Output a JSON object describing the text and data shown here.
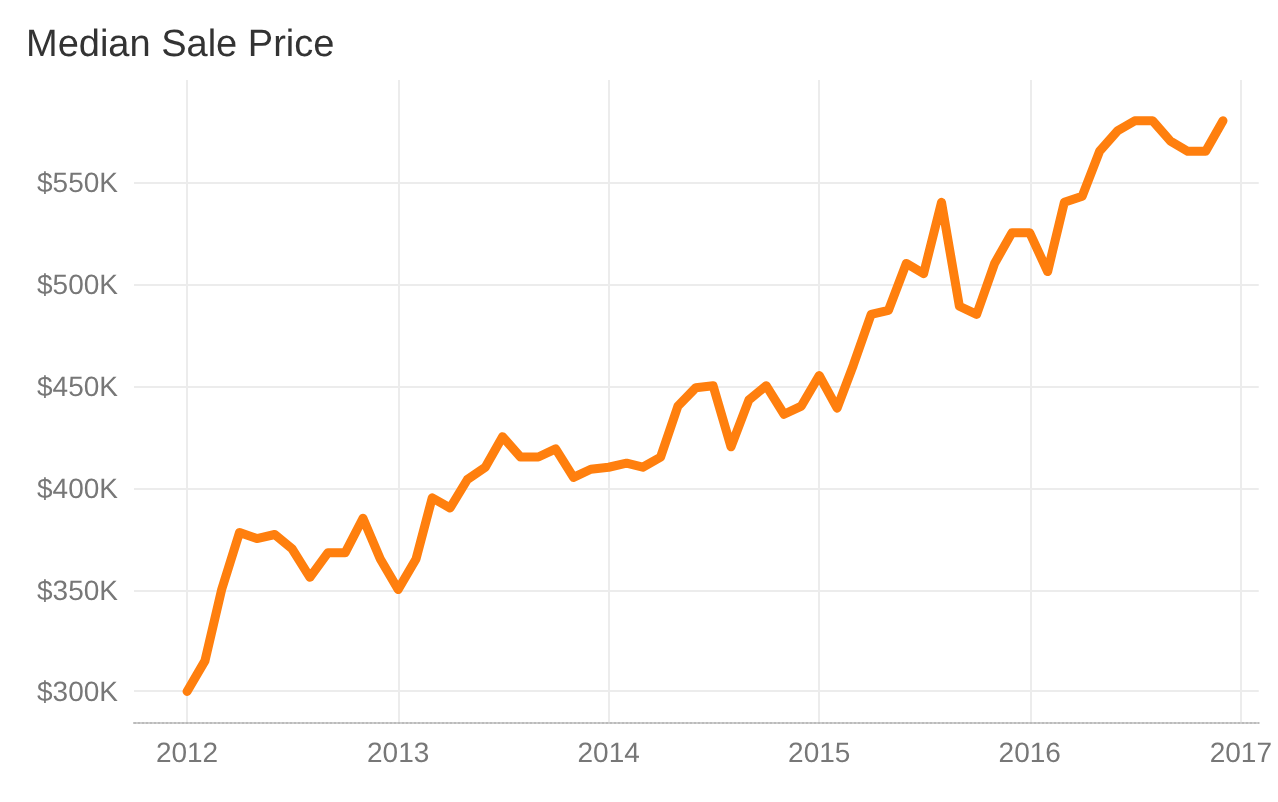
{
  "chart_data": {
    "type": "line",
    "title": "Median Sale Price",
    "x": [
      "2012-01",
      "2012-02",
      "2012-03",
      "2012-04",
      "2012-05",
      "2012-06",
      "2012-07",
      "2012-08",
      "2012-09",
      "2012-10",
      "2012-11",
      "2012-12",
      "2013-01",
      "2013-02",
      "2013-03",
      "2013-04",
      "2013-05",
      "2013-06",
      "2013-07",
      "2013-08",
      "2013-09",
      "2013-10",
      "2013-11",
      "2013-12",
      "2014-01",
      "2014-02",
      "2014-03",
      "2014-04",
      "2014-05",
      "2014-06",
      "2014-07",
      "2014-08",
      "2014-09",
      "2014-10",
      "2014-11",
      "2014-12",
      "2015-01",
      "2015-02",
      "2015-03",
      "2015-04",
      "2015-05",
      "2015-06",
      "2015-07",
      "2015-08",
      "2015-09",
      "2015-10",
      "2015-11",
      "2015-12",
      "2016-01",
      "2016-02",
      "2016-03",
      "2016-04",
      "2016-05",
      "2016-06",
      "2016-07",
      "2016-08",
      "2016-09",
      "2016-10",
      "2016-11",
      "2016-12"
    ],
    "series": [
      {
        "color": "#ff7f0e",
        "values": [
          300000,
          315000,
          350000,
          378000,
          375000,
          377000,
          370000,
          356000,
          368000,
          368000,
          385000,
          365000,
          350000,
          365000,
          395000,
          390000,
          404000,
          410000,
          425000,
          415000,
          415000,
          419000,
          405000,
          409000,
          410000,
          412000,
          410000,
          415000,
          440000,
          449000,
          450000,
          420000,
          443000,
          450000,
          436000,
          440000,
          455000,
          439000,
          460000,
          485000,
          487000,
          510000,
          505000,
          540000,
          489000,
          485000,
          510000,
          525000,
          525000,
          506000,
          540000,
          543000,
          565000,
          575000,
          580000,
          580000,
          570000,
          565000,
          565000,
          580000
        ]
      }
    ],
    "xlim": [
      "2011-10",
      "2017-02"
    ],
    "xticks": [
      {
        "value": "2012",
        "label": "2012"
      },
      {
        "value": "2013",
        "label": "2013"
      },
      {
        "value": "2014",
        "label": "2014"
      },
      {
        "value": "2015",
        "label": "2015"
      },
      {
        "value": "2016",
        "label": "2016"
      },
      {
        "value": "2017",
        "label": "2017"
      }
    ],
    "ylim": [
      285000,
      600000
    ],
    "yticks": [
      {
        "value": 300000,
        "label": "$300K"
      },
      {
        "value": 350000,
        "label": "$350K"
      },
      {
        "value": 400000,
        "label": "$400K"
      },
      {
        "value": 450000,
        "label": "$450K"
      },
      {
        "value": 500000,
        "label": "$500K"
      },
      {
        "value": 550000,
        "label": "$550K"
      }
    ],
    "grid": true,
    "marker": "none",
    "line_style": "solid"
  }
}
